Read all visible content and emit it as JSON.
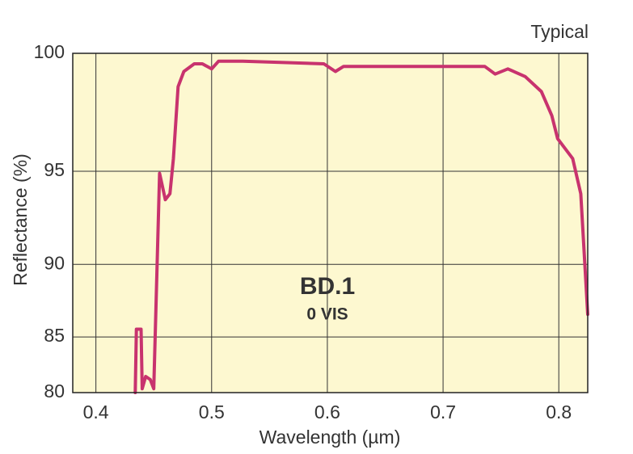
{
  "chart_data": {
    "type": "line",
    "corner_note": "Typical",
    "annotation": "BD.1",
    "annotation_sub": "0 VIS",
    "xlabel": "Wavelength (µm)",
    "ylabel": "Reflectance (%)",
    "xlim": [
      0.38,
      0.825
    ],
    "xticks": [
      0.4,
      0.5,
      0.6,
      0.7,
      0.8
    ],
    "ylim": [
      80,
      100
    ],
    "yticks": [
      80,
      85,
      90,
      95,
      100
    ],
    "grid": true,
    "series": [
      {
        "color": "#c8336e",
        "x": [
          0.434,
          0.435,
          0.439,
          0.44,
          0.443,
          0.447,
          0.45,
          0.455,
          0.46,
          0.464,
          0.467,
          0.471,
          0.476,
          0.485,
          0.492,
          0.5,
          0.506,
          0.527,
          0.597,
          0.607,
          0.614,
          0.666,
          0.736,
          0.745,
          0.756,
          0.771,
          0.785,
          0.794,
          0.799,
          0.812,
          0.819,
          0.825
        ],
        "values": [
          80,
          85.6,
          85.6,
          80.4,
          81.6,
          81.3,
          80.4,
          94.9,
          93.6,
          93.9,
          95.6,
          98.7,
          99.3,
          99.6,
          99.6,
          99.4,
          99.7,
          99.7,
          99.6,
          99.3,
          99.5,
          99.5,
          99.5,
          99.2,
          99.4,
          99.1,
          98.5,
          97.5,
          96.5,
          95.6,
          93.9,
          86.7
        ]
      }
    ]
  }
}
